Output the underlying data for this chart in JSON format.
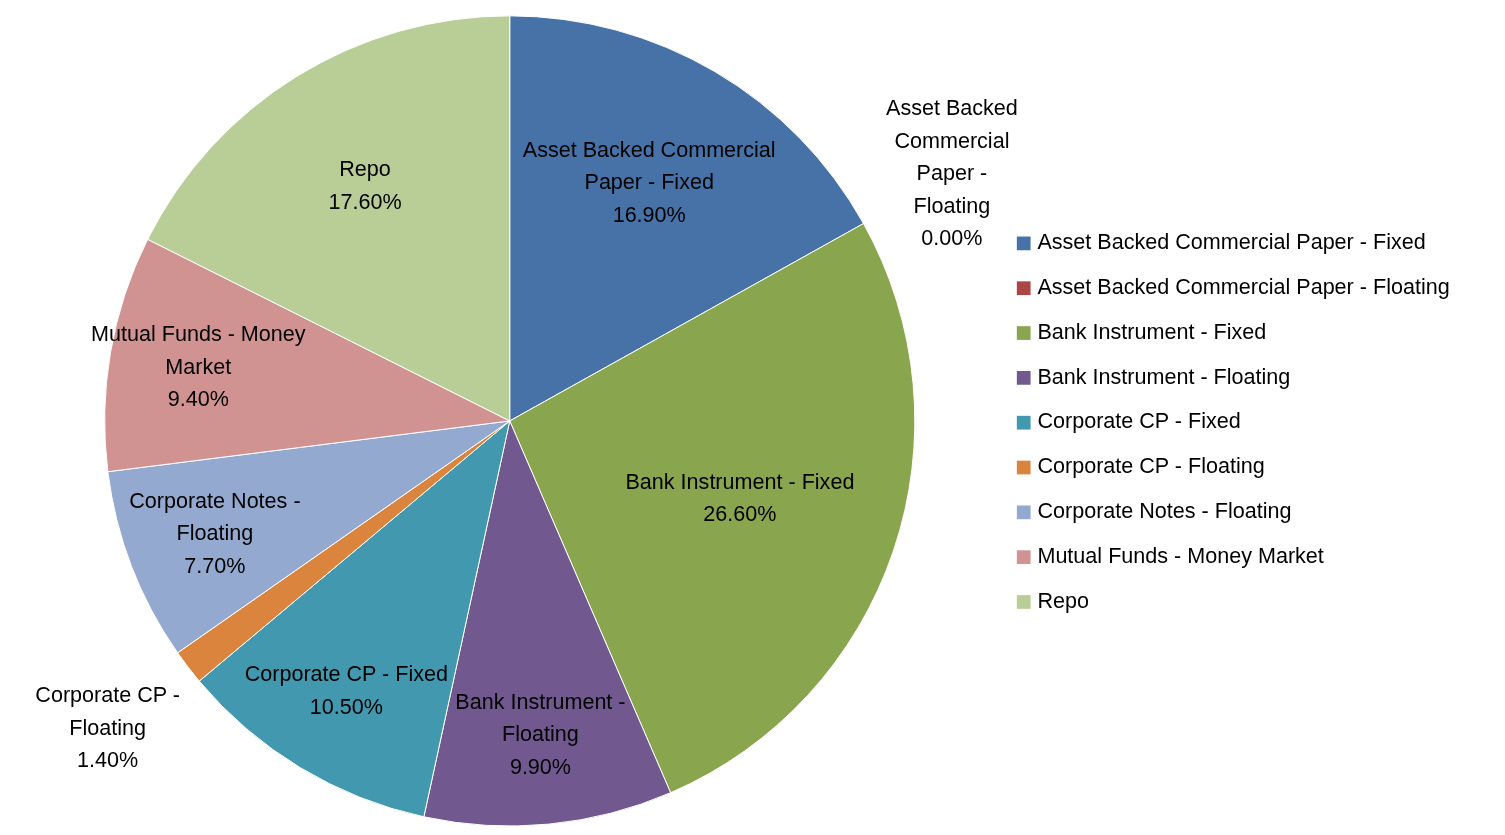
{
  "chart_data": {
    "type": "pie",
    "categories": [
      "Asset Backed Commercial Paper - Fixed",
      "Asset Backed Commercial Paper - Floating",
      "Bank Instrument - Fixed",
      "Bank Instrument - Floating",
      "Corporate CP - Fixed",
      "Corporate CP - Floating",
      "Corporate Notes - Floating",
      "Mutual Funds - Money Market",
      "Repo"
    ],
    "values": [
      16.9,
      0.0,
      26.6,
      9.9,
      10.5,
      1.4,
      7.7,
      9.4,
      17.6
    ],
    "colors": [
      "#4672a8",
      "#aa4643",
      "#89a54e",
      "#71588f",
      "#4198af",
      "#db843d",
      "#93a9cf",
      "#d19392",
      "#b9cd96"
    ],
    "value_labels": [
      "16.90%",
      "0.00%",
      "26.60%",
      "9.90%",
      "10.50%",
      "1.40%",
      "7.70%",
      "9.40%",
      "17.60%"
    ],
    "legend": "right"
  }
}
